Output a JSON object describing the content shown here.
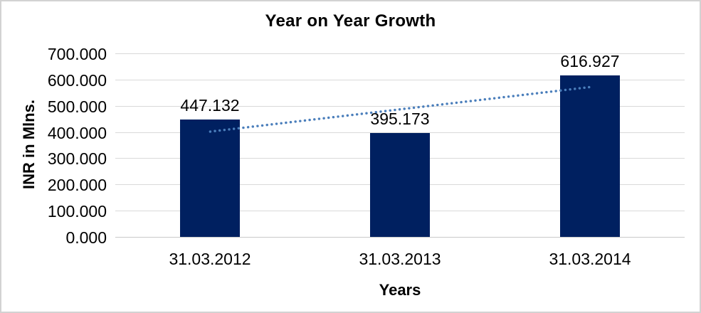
{
  "chart_data": {
    "type": "bar",
    "title": "Year on Year Growth",
    "xlabel": "Years",
    "ylabel": "INR in Mlns.",
    "categories": [
      "31.03.2012",
      "31.03.2013",
      "31.03.2014"
    ],
    "values": [
      447.132,
      395.173,
      616.927
    ],
    "data_labels": [
      "447.132",
      "395.173",
      "616.927"
    ],
    "y_tick_values": [
      0,
      100,
      200,
      300,
      400,
      500,
      600,
      700
    ],
    "y_tick_labels": [
      "0.000",
      "100.000",
      "200.000",
      "300.000",
      "400.000",
      "500.000",
      "600.000",
      "700.000"
    ],
    "ylim": [
      0,
      700
    ],
    "y_tick_step": 100,
    "grid": true,
    "legend": false,
    "trendline": {
      "type": "linear",
      "style": "dotted"
    }
  },
  "colors": {
    "bar": "#002060",
    "trendline": "#4A7EBB",
    "gridline": "#D9D9D9",
    "axis_line": "#C9C9C9",
    "text": "#000000",
    "frame_border": "#D2D2D2",
    "background": "#FFFFFF"
  }
}
